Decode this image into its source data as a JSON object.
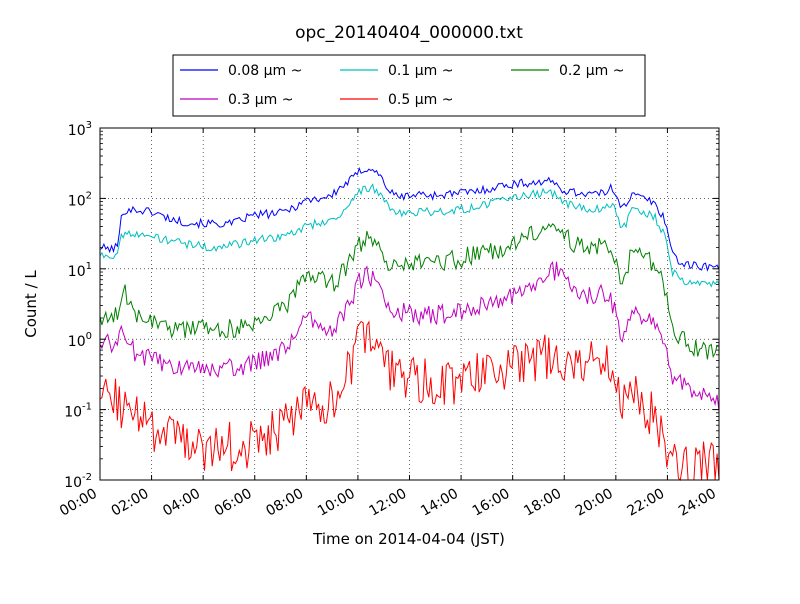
{
  "chart_data": {
    "type": "line",
    "title": "opc_20140404_000000.txt",
    "xlabel": "Time on 2014-04-04 (JST)",
    "ylabel": "Count / L",
    "y_scale": "log",
    "ylim": [
      0.01,
      1000
    ],
    "xlim": [
      0,
      24
    ],
    "x_unit": "hours (JST)",
    "xtick_labels": [
      "00:00",
      "02:00",
      "04:00",
      "06:00",
      "08:00",
      "10:00",
      "12:00",
      "14:00",
      "16:00",
      "18:00",
      "20:00",
      "22:00",
      "24:00"
    ],
    "ytick_labels": [
      {
        "base": "10",
        "exp": "-2"
      },
      {
        "base": "10",
        "exp": "-1"
      },
      {
        "base": "10",
        "exp": "0"
      },
      {
        "base": "10",
        "exp": "1"
      },
      {
        "base": "10",
        "exp": "2"
      },
      {
        "base": "10",
        "exp": "3"
      }
    ],
    "grid": true,
    "legend": {
      "position": "above plot",
      "columns": 3
    },
    "series": [
      {
        "name": "0.08 μm ~",
        "color": "#0000ff",
        "noise": 0.06,
        "points": [
          [
            0,
            20
          ],
          [
            0.5,
            19
          ],
          [
            0.7,
            22
          ],
          [
            0.85,
            60
          ],
          [
            1,
            70
          ],
          [
            1.5,
            68
          ],
          [
            2,
            65
          ],
          [
            2.5,
            55
          ],
          [
            3,
            48
          ],
          [
            3.5,
            45
          ],
          [
            4,
            44
          ],
          [
            4.5,
            44
          ],
          [
            5,
            43
          ],
          [
            5.3,
            46
          ],
          [
            5.6,
            52
          ],
          [
            6,
            58
          ],
          [
            6.5,
            60
          ],
          [
            7,
            62
          ],
          [
            7.5,
            75
          ],
          [
            8,
            95
          ],
          [
            8.5,
            100
          ],
          [
            9,
            110
          ],
          [
            9.3,
            140
          ],
          [
            9.7,
            180
          ],
          [
            10,
            230
          ],
          [
            10.3,
            270
          ],
          [
            10.6,
            260
          ],
          [
            10.9,
            200
          ],
          [
            11.2,
            130
          ],
          [
            11.5,
            105
          ],
          [
            12,
            110
          ],
          [
            12.5,
            115
          ],
          [
            13,
            110
          ],
          [
            13.5,
            115
          ],
          [
            14,
            120
          ],
          [
            14.5,
            125
          ],
          [
            15,
            135
          ],
          [
            15.5,
            150
          ],
          [
            16,
            160
          ],
          [
            16.5,
            165
          ],
          [
            17,
            170
          ],
          [
            17.3,
            175
          ],
          [
            17.6,
            165
          ],
          [
            18,
            130
          ],
          [
            18.5,
            120
          ],
          [
            19,
            118
          ],
          [
            19.5,
            115
          ],
          [
            19.8,
            140
          ],
          [
            20,
            120
          ],
          [
            20.2,
            80
          ],
          [
            20.4,
            85
          ],
          [
            20.6,
            110
          ],
          [
            21,
            105
          ],
          [
            21.5,
            85
          ],
          [
            21.9,
            50
          ],
          [
            22.2,
            17
          ],
          [
            22.5,
            12
          ],
          [
            23,
            11
          ],
          [
            23.5,
            11
          ],
          [
            24,
            10
          ]
        ]
      },
      {
        "name": "0.1 μm ~",
        "color": "#00bfbf",
        "noise": 0.06,
        "points": [
          [
            0,
            16
          ],
          [
            0.5,
            15
          ],
          [
            0.7,
            18
          ],
          [
            0.85,
            30
          ],
          [
            1,
            34
          ],
          [
            1.5,
            32
          ],
          [
            2,
            28
          ],
          [
            2.5,
            26
          ],
          [
            3,
            24
          ],
          [
            3.5,
            22
          ],
          [
            4,
            21
          ],
          [
            4.5,
            20
          ],
          [
            5,
            21
          ],
          [
            5.5,
            23
          ],
          [
            6,
            26
          ],
          [
            6.5,
            27
          ],
          [
            7,
            28
          ],
          [
            7.5,
            33
          ],
          [
            8,
            40
          ],
          [
            8.5,
            45
          ],
          [
            9,
            50
          ],
          [
            9.3,
            60
          ],
          [
            9.7,
            85
          ],
          [
            10,
            115
          ],
          [
            10.3,
            145
          ],
          [
            10.6,
            140
          ],
          [
            10.9,
            110
          ],
          [
            11.2,
            75
          ],
          [
            11.5,
            60
          ],
          [
            12,
            62
          ],
          [
            12.5,
            65
          ],
          [
            13,
            63
          ],
          [
            13.5,
            67
          ],
          [
            14,
            70
          ],
          [
            14.5,
            75
          ],
          [
            15,
            82
          ],
          [
            15.5,
            90
          ],
          [
            16,
            100
          ],
          [
            16.5,
            110
          ],
          [
            17,
            118
          ],
          [
            17.3,
            122
          ],
          [
            17.6,
            115
          ],
          [
            18,
            85
          ],
          [
            18.5,
            75
          ],
          [
            19,
            72
          ],
          [
            19.5,
            70
          ],
          [
            19.8,
            80
          ],
          [
            20,
            70
          ],
          [
            20.2,
            40
          ],
          [
            20.4,
            45
          ],
          [
            20.6,
            70
          ],
          [
            21,
            65
          ],
          [
            21.5,
            55
          ],
          [
            21.9,
            30
          ],
          [
            22.2,
            9
          ],
          [
            22.5,
            7
          ],
          [
            23,
            6.5
          ],
          [
            23.5,
            6
          ],
          [
            24,
            6
          ]
        ]
      },
      {
        "name": "0.2 μm ~",
        "color": "#008000",
        "noise": 0.14,
        "points": [
          [
            0,
            2.2
          ],
          [
            0.5,
            2.1
          ],
          [
            0.8,
            2.3
          ],
          [
            0.95,
            5
          ],
          [
            1.1,
            3
          ],
          [
            1.5,
            2.2
          ],
          [
            2,
            2
          ],
          [
            2.5,
            1.6
          ],
          [
            3,
            1.3
          ],
          [
            3.5,
            1.3
          ],
          [
            4,
            1.4
          ],
          [
            4.5,
            1.3
          ],
          [
            5,
            1.4
          ],
          [
            5.5,
            1.5
          ],
          [
            6,
            1.7
          ],
          [
            6.5,
            2.0
          ],
          [
            7,
            2.6
          ],
          [
            7.5,
            4
          ],
          [
            8,
            8
          ],
          [
            8.5,
            7.5
          ],
          [
            9,
            6
          ],
          [
            9.5,
            10
          ],
          [
            10,
            20
          ],
          [
            10.3,
            27
          ],
          [
            10.6,
            22
          ],
          [
            11,
            14
          ],
          [
            11.5,
            10
          ],
          [
            12,
            11
          ],
          [
            12.5,
            12
          ],
          [
            13,
            12.5
          ],
          [
            13.5,
            13
          ],
          [
            14,
            14
          ],
          [
            14.5,
            16
          ],
          [
            15,
            17
          ],
          [
            15.5,
            19
          ],
          [
            16,
            22
          ],
          [
            16.5,
            27
          ],
          [
            17,
            35
          ],
          [
            17.4,
            45
          ],
          [
            17.8,
            40
          ],
          [
            18.2,
            25
          ],
          [
            18.7,
            21
          ],
          [
            19.2,
            20
          ],
          [
            19.6,
            21
          ],
          [
            19.9,
            15
          ],
          [
            20.2,
            7
          ],
          [
            20.4,
            7
          ],
          [
            20.6,
            17
          ],
          [
            21,
            14
          ],
          [
            21.5,
            12
          ],
          [
            21.9,
            5
          ],
          [
            22.2,
            1.5
          ],
          [
            22.5,
            1.0
          ],
          [
            23,
            0.8
          ],
          [
            23.5,
            0.7
          ],
          [
            24,
            0.65
          ]
        ]
      },
      {
        "name": "0.3 μm ~",
        "color": "#bf00bf",
        "noise": 0.14,
        "points": [
          [
            0,
            0.85
          ],
          [
            0.5,
            0.9
          ],
          [
            0.8,
            1.1
          ],
          [
            0.95,
            1.2
          ],
          [
            1.1,
            0.8
          ],
          [
            1.5,
            0.6
          ],
          [
            2,
            0.5
          ],
          [
            2.5,
            0.45
          ],
          [
            3,
            0.4
          ],
          [
            3.5,
            0.38
          ],
          [
            4,
            0.38
          ],
          [
            4.5,
            0.36
          ],
          [
            5,
            0.38
          ],
          [
            5.5,
            0.42
          ],
          [
            6,
            0.45
          ],
          [
            6.5,
            0.55
          ],
          [
            7,
            0.7
          ],
          [
            7.5,
            1.0
          ],
          [
            8,
            2.0
          ],
          [
            8.5,
            1.9
          ],
          [
            9,
            1.2
          ],
          [
            9.5,
            2.5
          ],
          [
            10,
            6
          ],
          [
            10.3,
            9
          ],
          [
            10.6,
            7
          ],
          [
            11,
            4
          ],
          [
            11.5,
            2.5
          ],
          [
            12,
            2.3
          ],
          [
            12.5,
            2.2
          ],
          [
            13,
            2.2
          ],
          [
            13.5,
            2.3
          ],
          [
            14,
            2.4
          ],
          [
            14.5,
            2.7
          ],
          [
            15,
            3.0
          ],
          [
            15.5,
            3.5
          ],
          [
            16,
            4.2
          ],
          [
            16.5,
            5
          ],
          [
            17,
            7
          ],
          [
            17.4,
            10
          ],
          [
            17.8,
            9
          ],
          [
            18.2,
            6
          ],
          [
            18.7,
            4.5
          ],
          [
            19.2,
            4.2
          ],
          [
            19.6,
            4.5
          ],
          [
            19.9,
            3
          ],
          [
            20.2,
            1.1
          ],
          [
            20.4,
            1.1
          ],
          [
            20.6,
            2.5
          ],
          [
            21,
            2.0
          ],
          [
            21.5,
            1.5
          ],
          [
            21.9,
            0.7
          ],
          [
            22.2,
            0.3
          ],
          [
            22.5,
            0.25
          ],
          [
            23,
            0.18
          ],
          [
            23.5,
            0.15
          ],
          [
            24,
            0.13
          ]
        ]
      },
      {
        "name": "0.5 μm ~",
        "color": "#ff0000",
        "noise": 0.35,
        "points": [
          [
            0,
            0.13
          ],
          [
            0.5,
            0.14
          ],
          [
            1,
            0.11
          ],
          [
            1.5,
            0.08
          ],
          [
            2,
            0.045
          ],
          [
            2.5,
            0.04
          ],
          [
            3,
            0.035
          ],
          [
            3.5,
            0.03
          ],
          [
            4,
            0.03
          ],
          [
            4.5,
            0.028
          ],
          [
            5,
            0.03
          ],
          [
            5.5,
            0.03
          ],
          [
            6,
            0.035
          ],
          [
            6.5,
            0.04
          ],
          [
            7,
            0.05
          ],
          [
            7.5,
            0.07
          ],
          [
            8,
            0.1
          ],
          [
            8.5,
            0.15
          ],
          [
            9,
            0.13
          ],
          [
            9.5,
            0.25
          ],
          [
            10,
            0.7
          ],
          [
            10.3,
            1.1
          ],
          [
            10.6,
            0.9
          ],
          [
            11,
            0.5
          ],
          [
            11.5,
            0.3
          ],
          [
            12,
            0.28
          ],
          [
            12.5,
            0.25
          ],
          [
            13,
            0.25
          ],
          [
            13.5,
            0.25
          ],
          [
            14,
            0.28
          ],
          [
            14.5,
            0.3
          ],
          [
            15,
            0.32
          ],
          [
            15.5,
            0.38
          ],
          [
            16,
            0.45
          ],
          [
            16.5,
            0.5
          ],
          [
            17,
            0.55
          ],
          [
            17.5,
            0.58
          ],
          [
            18,
            0.55
          ],
          [
            18.5,
            0.5
          ],
          [
            19,
            0.45
          ],
          [
            19.5,
            0.45
          ],
          [
            19.8,
            0.35
          ],
          [
            20.2,
            0.12
          ],
          [
            20.6,
            0.18
          ],
          [
            21,
            0.12
          ],
          [
            21.5,
            0.08
          ],
          [
            21.9,
            0.04
          ],
          [
            22.2,
            0.02
          ],
          [
            22.5,
            0.018
          ],
          [
            23,
            0.017
          ],
          [
            23.5,
            0.016
          ],
          [
            24,
            0.015
          ]
        ]
      }
    ]
  }
}
